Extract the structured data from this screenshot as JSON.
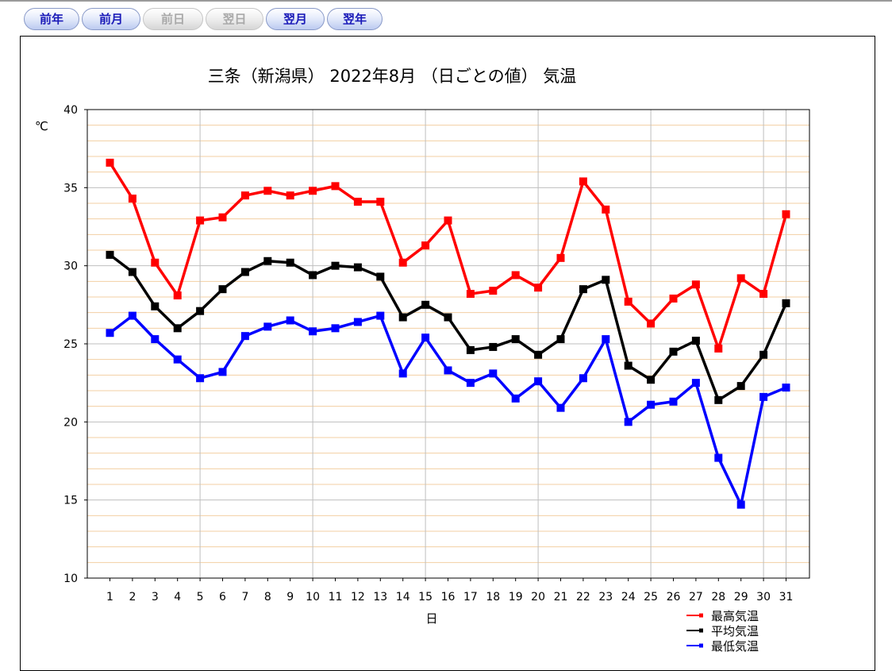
{
  "nav": {
    "buttons": [
      {
        "label": "前年",
        "enabled": true
      },
      {
        "label": "前月",
        "enabled": true
      },
      {
        "label": "前日",
        "enabled": false
      },
      {
        "label": "翌日",
        "enabled": false
      },
      {
        "label": "翌月",
        "enabled": true
      },
      {
        "label": "翌年",
        "enabled": true
      }
    ]
  },
  "chart_data": {
    "type": "line",
    "title": "三条（新潟県） 2022年8月 （日ごとの値） 気温",
    "xlabel": "日",
    "ylabel": "℃",
    "ylim": [
      10,
      40
    ],
    "yticks": [
      10,
      15,
      20,
      25,
      30,
      35,
      40
    ],
    "grid": true,
    "legend_position": "bottom-right",
    "categories": [
      "1",
      "2",
      "3",
      "4",
      "5",
      "6",
      "7",
      "8",
      "9",
      "10",
      "11",
      "12",
      "13",
      "14",
      "15",
      "16",
      "17",
      "18",
      "19",
      "20",
      "21",
      "22",
      "23",
      "24",
      "25",
      "26",
      "27",
      "28",
      "29",
      "30",
      "31"
    ],
    "series": [
      {
        "name": "最高気温",
        "color": "#ff0000",
        "values": [
          36.6,
          34.3,
          30.2,
          28.1,
          32.9,
          33.1,
          34.5,
          34.8,
          34.5,
          34.8,
          35.1,
          34.1,
          34.1,
          30.2,
          31.3,
          32.9,
          28.2,
          28.4,
          29.4,
          28.6,
          30.5,
          35.4,
          33.6,
          27.7,
          26.3,
          27.9,
          28.8,
          24.7,
          29.2,
          28.2,
          33.3
        ]
      },
      {
        "name": "平均気温",
        "color": "#000000",
        "values": [
          30.7,
          29.6,
          27.4,
          26.0,
          27.1,
          28.5,
          29.6,
          30.3,
          30.2,
          29.4,
          30.0,
          29.9,
          29.3,
          26.7,
          27.5,
          26.7,
          24.6,
          24.8,
          25.3,
          24.3,
          25.3,
          28.5,
          29.1,
          23.6,
          22.7,
          24.5,
          25.2,
          21.4,
          22.3,
          24.3,
          27.6
        ]
      },
      {
        "name": "最低気温",
        "color": "#0000ff",
        "values": [
          25.7,
          26.8,
          25.3,
          24.0,
          22.8,
          23.2,
          25.5,
          26.1,
          26.5,
          25.8,
          26.0,
          26.4,
          26.8,
          23.1,
          25.4,
          23.3,
          22.5,
          23.1,
          21.5,
          22.6,
          20.9,
          22.8,
          25.3,
          20.0,
          21.1,
          21.3,
          22.5,
          17.7,
          14.7,
          21.6,
          22.2
        ]
      }
    ]
  }
}
